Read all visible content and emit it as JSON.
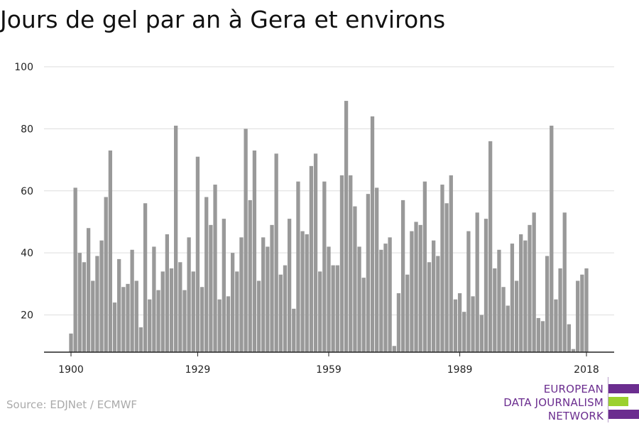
{
  "chart_data": {
    "type": "bar",
    "title": "Jours de gel par an à Gera et environs",
    "source": "Source: EDJNet / ECMWF",
    "x": [
      1900,
      1901,
      1902,
      1903,
      1904,
      1905,
      1906,
      1907,
      1908,
      1909,
      1910,
      1911,
      1912,
      1913,
      1914,
      1915,
      1916,
      1917,
      1918,
      1919,
      1920,
      1921,
      1922,
      1923,
      1924,
      1925,
      1926,
      1927,
      1928,
      1929,
      1930,
      1931,
      1932,
      1933,
      1934,
      1935,
      1936,
      1937,
      1938,
      1939,
      1940,
      1941,
      1942,
      1943,
      1944,
      1945,
      1946,
      1947,
      1948,
      1949,
      1950,
      1951,
      1952,
      1953,
      1954,
      1955,
      1956,
      1957,
      1958,
      1959,
      1960,
      1961,
      1962,
      1963,
      1964,
      1965,
      1966,
      1967,
      1968,
      1969,
      1970,
      1971,
      1972,
      1973,
      1974,
      1975,
      1976,
      1977,
      1978,
      1979,
      1980,
      1981,
      1982,
      1983,
      1984,
      1985,
      1986,
      1987,
      1988,
      1989,
      1990,
      1991,
      1992,
      1993,
      1994,
      1995,
      1996,
      1997,
      1998,
      1999,
      2000,
      2001,
      2002,
      2003,
      2004,
      2005,
      2006,
      2007,
      2008,
      2009,
      2010,
      2011,
      2012,
      2013,
      2014,
      2015,
      2016,
      2017,
      2018
    ],
    "values": [
      14,
      61,
      40,
      37,
      48,
      31,
      39,
      44,
      58,
      73,
      24,
      38,
      29,
      30,
      41,
      31,
      16,
      56,
      25,
      42,
      28,
      34,
      46,
      35,
      81,
      37,
      28,
      45,
      34,
      71,
      29,
      58,
      49,
      62,
      25,
      51,
      26,
      40,
      34,
      45,
      80,
      57,
      73,
      31,
      45,
      42,
      49,
      72,
      33,
      36,
      51,
      22,
      63,
      47,
      46,
      68,
      72,
      34,
      63,
      42,
      36,
      36,
      65,
      89,
      65,
      55,
      42,
      32,
      59,
      84,
      61,
      41,
      43,
      45,
      10,
      27,
      57,
      33,
      47,
      50,
      49,
      63,
      37,
      44,
      39,
      62,
      56,
      65,
      25,
      27,
      21,
      47,
      26,
      53,
      20,
      51,
      76,
      35,
      41,
      29,
      23,
      43,
      31,
      46,
      44,
      49,
      53,
      19,
      18,
      39,
      81,
      25,
      35,
      53,
      17,
      9,
      31,
      33,
      35
    ],
    "xticks": [
      1900,
      1929,
      1959,
      1989,
      2018
    ],
    "yticks": [
      20,
      40,
      60,
      80,
      100
    ],
    "xlim": [
      1900,
      2018
    ],
    "ylim": [
      8,
      100
    ],
    "bar_color": "#999999",
    "grid": true
  },
  "logo": {
    "lines": [
      "EUROPEAN",
      "DATA JOURNALISM",
      "NETWORK"
    ],
    "colors": [
      "#6b2d8f",
      "#9bd12e",
      "#6b2d8f"
    ]
  }
}
